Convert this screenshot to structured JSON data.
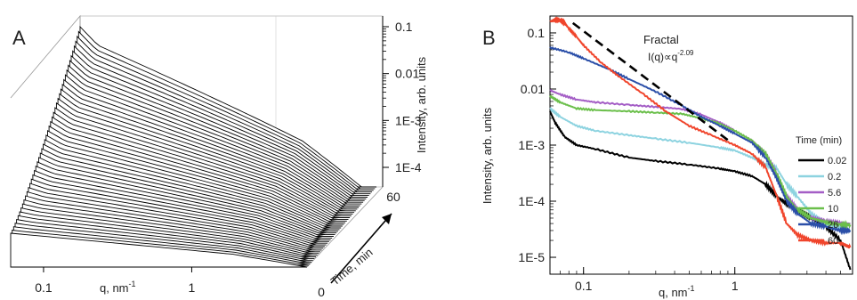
{
  "chart_data": [
    {
      "panel_label": "A",
      "type": "line",
      "xlabel_base": "q, nm",
      "xlabel_exp": "-1",
      "zlabel": "Intensity, arb. units",
      "time_label": "Time, min",
      "x_scale": "log",
      "z_scale": "log",
      "x_ticks": [
        {
          "value": 0.1,
          "label": "0.1"
        },
        {
          "value": 1,
          "label": "1"
        }
      ],
      "z_ticks": [
        {
          "value": 0.1,
          "label": "0.1"
        },
        {
          "value": 0.01,
          "label": "0.01"
        },
        {
          "value": 0.001,
          "label": "1E-3"
        },
        {
          "value": 0.0001,
          "label": "1E-4"
        }
      ],
      "time_ticks": [
        {
          "value": 0,
          "label": "0"
        },
        {
          "value": 60,
          "label": "60"
        }
      ],
      "time_range": [
        0,
        60
      ],
      "curve_count": 48
    },
    {
      "panel_label": "B",
      "type": "line",
      "xlabel_base": "q, nm",
      "xlabel_exp": "-1",
      "ylabel": "Intensity, arb. units",
      "x_scale": "log",
      "y_scale": "log",
      "xlim": [
        0.06,
        6
      ],
      "ylim": [
        5e-06,
        0.2
      ],
      "x_ticks": [
        {
          "value": 0.1,
          "label": "0.1"
        },
        {
          "value": 1,
          "label": "1"
        }
      ],
      "y_ticks": [
        {
          "value": 0.1,
          "label": "0.1"
        },
        {
          "value": 0.01,
          "label": "0.01"
        },
        {
          "value": 0.001,
          "label": "1E-3"
        },
        {
          "value": 0.0001,
          "label": "1E-4"
        },
        {
          "value": 1e-05,
          "label": "1E-5"
        }
      ],
      "legend_title": "Time (min)",
      "legend_position": "right",
      "annotation": {
        "title": "Fractal",
        "formula": "I(q)∝q",
        "exponent": "-2.09",
        "slope": -2.09,
        "line": [
          [
            0.085,
            0.15
          ],
          [
            0.95,
            0.0011
          ]
        ]
      },
      "series": [
        {
          "name": "0.02",
          "color": "#000000",
          "x": [
            0.06,
            0.065,
            0.075,
            0.09,
            0.12,
            0.2,
            0.3,
            0.5,
            0.8,
            1.0,
            1.3,
            1.6,
            1.9,
            2.2,
            2.6,
            3.2,
            4.0,
            5.0,
            5.8
          ],
          "y": [
            0.004,
            0.0025,
            0.0014,
            0.001,
            0.00085,
            0.0006,
            0.00052,
            0.00045,
            0.00038,
            0.00034,
            0.00028,
            0.0002,
            0.00012,
            9e-05,
            7e-05,
            5e-05,
            3.5e-05,
            2e-05,
            6e-06
          ]
        },
        {
          "name": "0.2",
          "color": "#8dd3e0",
          "x": [
            0.06,
            0.07,
            0.09,
            0.12,
            0.2,
            0.3,
            0.5,
            0.8,
            1.0,
            1.3,
            1.6,
            1.9,
            2.2,
            2.6,
            3.2,
            4.0,
            5.0,
            5.8
          ],
          "y": [
            0.0045,
            0.0032,
            0.0022,
            0.0018,
            0.0015,
            0.0013,
            0.0011,
            0.0009,
            0.0008,
            0.0006,
            0.00045,
            0.00038,
            0.0002,
            0.00012,
            6e-05,
            4e-05,
            3.5e-05,
            3e-05
          ]
        },
        {
          "name": "5.6",
          "color": "#a45ec6",
          "x": [
            0.06,
            0.07,
            0.09,
            0.12,
            0.2,
            0.3,
            0.45,
            0.6,
            0.8,
            1.0,
            1.3,
            1.6,
            1.9,
            2.2,
            2.6,
            3.2,
            4.0,
            5.0,
            5.8
          ],
          "y": [
            0.0095,
            0.008,
            0.0065,
            0.0058,
            0.0052,
            0.0048,
            0.0044,
            0.0035,
            0.0025,
            0.0018,
            0.0012,
            0.0007,
            0.0003,
            0.00012,
            7e-05,
            5e-05,
            4.5e-05,
            4e-05,
            4e-05
          ]
        },
        {
          "name": "10",
          "color": "#6bbf4b",
          "x": [
            0.06,
            0.07,
            0.09,
            0.12,
            0.2,
            0.3,
            0.45,
            0.6,
            0.8,
            1.0,
            1.3,
            1.6,
            1.9,
            2.2,
            2.6,
            3.2,
            4.0,
            5.0,
            5.8
          ],
          "y": [
            0.0075,
            0.0058,
            0.0045,
            0.0042,
            0.004,
            0.0038,
            0.0036,
            0.003,
            0.0024,
            0.0018,
            0.0012,
            0.0007,
            0.0003,
            0.00012,
            7e-05,
            5e-05,
            4.2e-05,
            3.8e-05,
            3.8e-05
          ]
        },
        {
          "name": "26",
          "color": "#2b4fa8",
          "x": [
            0.06,
            0.08,
            0.1,
            0.15,
            0.2,
            0.3,
            0.45,
            0.6,
            0.8,
            1.0,
            1.3,
            1.6,
            1.9,
            2.2,
            2.6,
            3.2,
            4.0,
            5.0,
            5.8
          ],
          "y": [
            0.055,
            0.045,
            0.035,
            0.022,
            0.015,
            0.009,
            0.005,
            0.0032,
            0.0022,
            0.0016,
            0.0011,
            0.0006,
            0.00025,
            0.0001,
            6e-05,
            4e-05,
            3.5e-05,
            3e-05,
            3e-05
          ]
        },
        {
          "name": "60",
          "color": "#f0452c",
          "x": [
            0.06,
            0.065,
            0.07,
            0.075,
            0.08,
            0.09,
            0.1,
            0.13,
            0.17,
            0.25,
            0.35,
            0.5,
            0.7,
            1.0,
            1.3,
            1.6,
            1.9,
            2.2,
            2.6,
            3.2,
            4.0,
            5.0,
            5.8
          ],
          "y": [
            0.16,
            0.17,
            0.17,
            0.15,
            0.12,
            0.085,
            0.06,
            0.03,
            0.017,
            0.008,
            0.004,
            0.0022,
            0.0015,
            0.001,
            0.0007,
            0.0004,
            0.00012,
            4e-05,
            2.5e-05,
            2e-05,
            1.8e-05,
            1.8e-05,
            1.5e-05
          ]
        }
      ]
    }
  ]
}
